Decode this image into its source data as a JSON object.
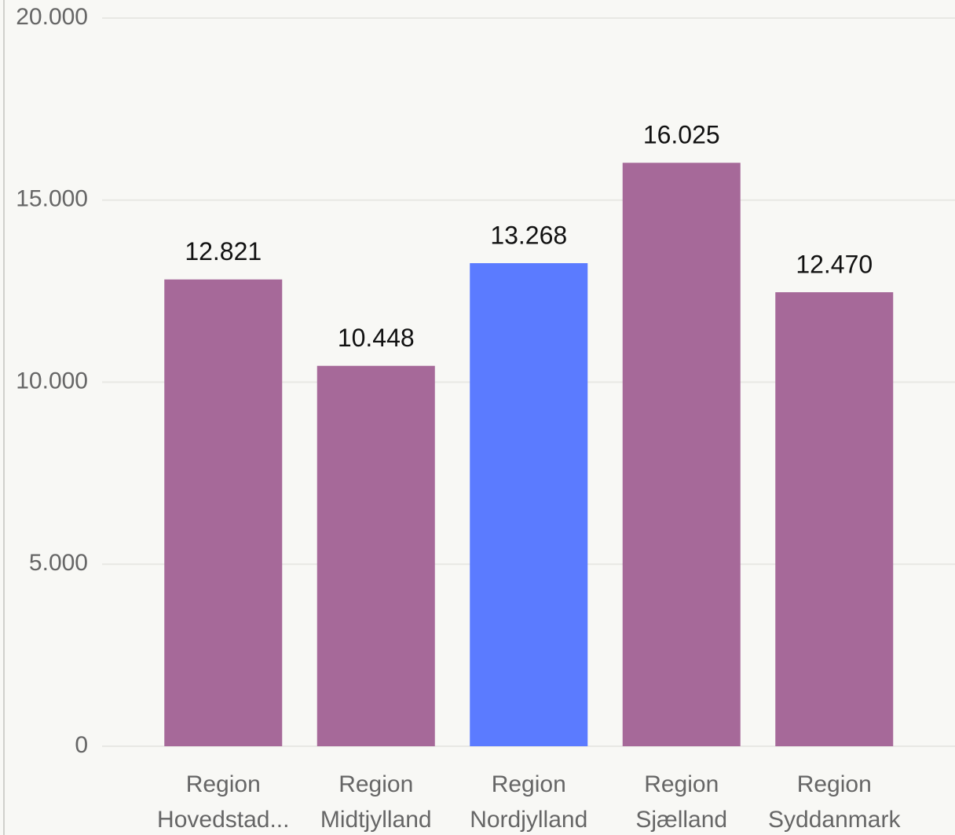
{
  "chart_data": {
    "type": "bar",
    "categories": [
      "Region Hovedstad...",
      "Region Midtjylland",
      "Region Nordjylland",
      "Region Sjælland",
      "Region Syddanmark"
    ],
    "values": [
      12821,
      10448,
      13268,
      16025,
      12470
    ],
    "value_labels": [
      "12.821",
      "10.448",
      "13.268",
      "16.025",
      "12.470"
    ],
    "colors": [
      "#a66999",
      "#a66999",
      "#5b7bff",
      "#a66999",
      "#a66999"
    ],
    "ylim": [
      0,
      20000
    ],
    "yticks": [
      0,
      {
        "value": 5000,
        "label": "5.000"
      },
      {
        "value": 10000,
        "label": "10.000"
      },
      {
        "value": 15000,
        "label": "15.000"
      },
      {
        "value": 20000,
        "label": "20.000"
      }
    ],
    "grid": true
  }
}
